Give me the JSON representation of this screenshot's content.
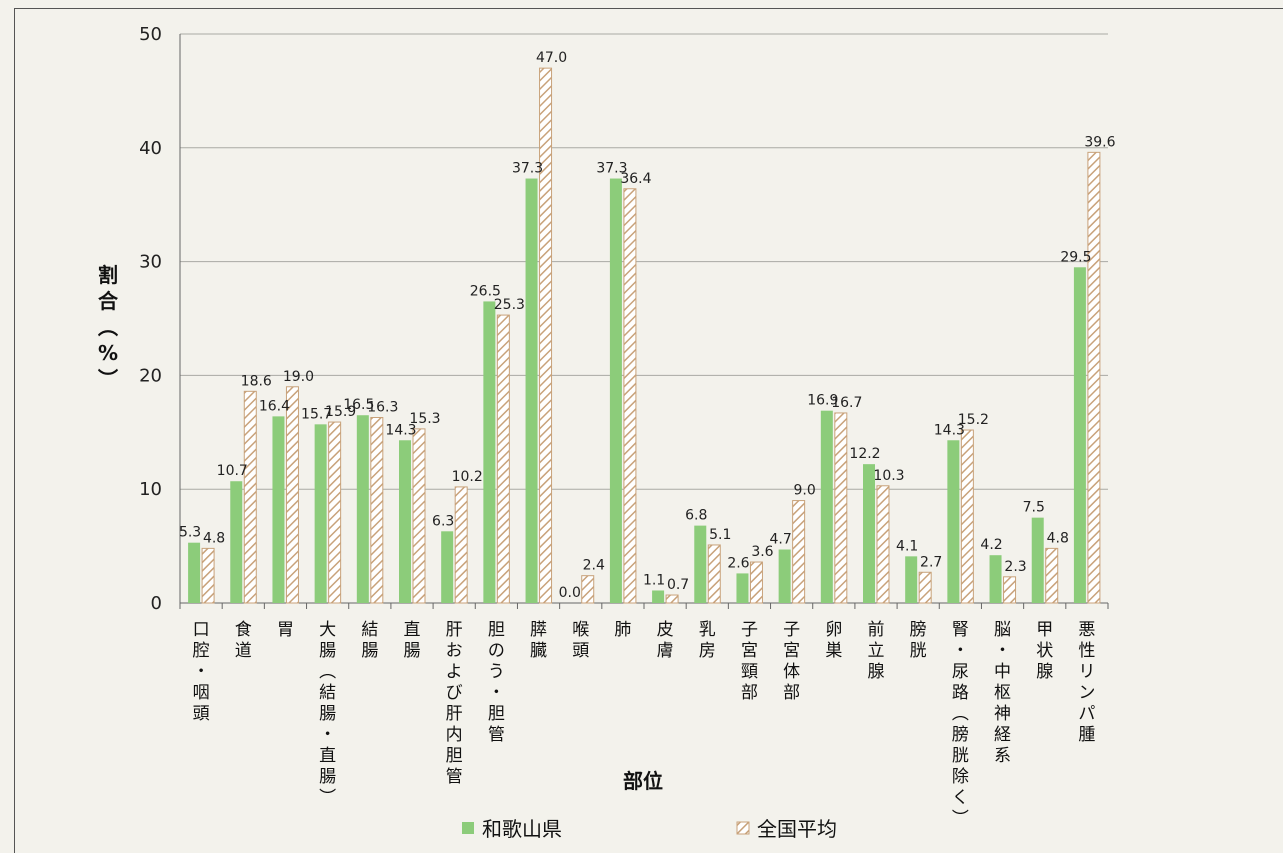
{
  "chart_data": {
    "type": "bar",
    "ylabel": "割合（%）",
    "xlabel": "部位",
    "ylim": [
      0,
      50
    ],
    "yticks": [
      0,
      10,
      20,
      30,
      40,
      50
    ],
    "grid": true,
    "legend_position": "bottom",
    "categories": [
      "口腔・咽頭",
      "食道",
      "胃",
      "大腸（結腸・直腸）",
      "結腸",
      "直腸",
      "肝および肝内胆管",
      "胆のう・胆管",
      "膵臓",
      "喉頭",
      "肺",
      "皮膚",
      "乳房",
      "子宮頸部",
      "子宮体部",
      "卵巣",
      "前立腺",
      "膀胱",
      "腎・尿路（膀胱除く）",
      "脳・中枢神経系",
      "甲状腺",
      "悪性リンパ腫"
    ],
    "series": [
      {
        "name": "和歌山県",
        "color": "#8ccc7a",
        "pattern": "solid",
        "values": [
          5.3,
          10.7,
          16.4,
          15.7,
          16.5,
          14.3,
          6.3,
          26.5,
          37.3,
          0.0,
          37.3,
          1.1,
          6.8,
          2.6,
          4.7,
          16.9,
          12.2,
          4.1,
          14.3,
          4.2,
          7.5,
          29.5
        ],
        "labels": [
          "5.3",
          "10.7",
          "16.4",
          "15.7",
          "16.5",
          "14.3",
          "6.3",
          "26.5",
          "37.3",
          "0.0",
          "37.3",
          "1.1",
          "6.8",
          "2.6",
          "4.7",
          "16.9",
          "12.2",
          "4.1",
          "14.3",
          "4.2",
          "7.5",
          "29.5"
        ]
      },
      {
        "name": "全国平均",
        "color": "#c8a27a",
        "pattern": "hatched",
        "values": [
          4.8,
          18.6,
          19.0,
          15.9,
          16.3,
          15.3,
          10.2,
          25.3,
          47.0,
          2.4,
          36.4,
          0.7,
          5.1,
          3.6,
          9.0,
          16.7,
          10.3,
          2.7,
          15.2,
          2.3,
          4.8,
          39.6
        ],
        "labels": [
          "4.8",
          "18.6",
          "19.0",
          "15.9",
          "16.3",
          "15.3",
          "10.2",
          "25.3",
          "47.0",
          "2.4",
          "36.4",
          "0.7",
          "5.1",
          "3.6",
          "9.0",
          "16.7",
          "10.3",
          "2.7",
          "15.2",
          "2.3",
          "4.8",
          "39.6"
        ]
      }
    ]
  }
}
